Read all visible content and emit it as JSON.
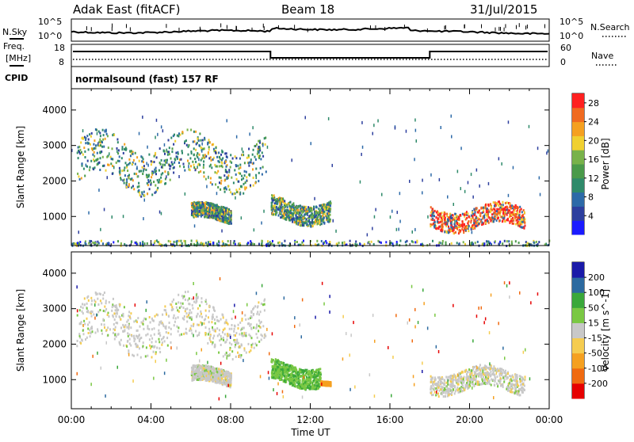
{
  "header": {
    "station": "Adak East (fitACF)",
    "beam": "Beam 18",
    "date": "31/Jul/2015"
  },
  "noise_panel": {
    "left_label": "N.Sky",
    "right_label": "N.Search",
    "tick_top": "10^5",
    "tick_bottom": "10^0"
  },
  "freq_panel": {
    "left_label_1": "Freq.",
    "left_label_2": "[MHz]",
    "left_ticks": [
      "18",
      "8"
    ],
    "right_label": "Nave",
    "right_ticks": [
      "60",
      "0"
    ]
  },
  "cpid": {
    "label": "CPID",
    "text": "normalsound (fast) 157 RF"
  },
  "xaxis": {
    "title": "Time UT",
    "ticks": [
      "00:00",
      "04:00",
      "08:00",
      "12:00",
      "16:00",
      "20:00",
      "00:00"
    ]
  },
  "colors": {
    "power": [
      "#1a1aff",
      "#2d3f9e",
      "#2d6aa8",
      "#2f8a6a",
      "#4a9a4a",
      "#78b24a",
      "#f0d030",
      "#f5a020",
      "#f06a20",
      "#ff2020"
    ],
    "velocity": [
      "#e60000",
      "#f06a10",
      "#f5a020",
      "#f5cc50",
      "#c8c8c8",
      "#7ac843",
      "#3aa83a",
      "#2c6aa0",
      "#1a1aa8"
    ]
  },
  "chart_data": [
    {
      "type": "heatmap",
      "name": "power-panel",
      "ylabel": "Slant Range [km]",
      "yticks": [
        1000,
        2000,
        3000,
        4000
      ],
      "ylim": [
        180,
        4600
      ],
      "xlim_hours": [
        0,
        24
      ],
      "colorbar": {
        "label": "Power [dB]",
        "ticks": [
          4,
          8,
          12,
          16,
          20,
          24,
          28
        ],
        "range": [
          0,
          30
        ]
      },
      "echo_regions": [
        {
          "t_start": "00:15",
          "t_end": "09:45",
          "range_km": [
            1700,
            3400
          ],
          "power_db": "4-20"
        },
        {
          "t_start": "06:00",
          "t_end": "08:00",
          "range_km": [
            800,
            1400
          ],
          "power_db": "8-20"
        },
        {
          "t_start": "10:00",
          "t_end": "13:00",
          "range_km": [
            800,
            1600
          ],
          "power_db": "4-16"
        },
        {
          "t_start": "18:00",
          "t_end": "22:45",
          "range_km": [
            600,
            1400
          ],
          "power_db": "4-30"
        },
        {
          "t_start": "00:00",
          "t_end": "24:00",
          "range_km": [
            180,
            350
          ],
          "power_db": "4-24"
        }
      ]
    },
    {
      "type": "heatmap",
      "name": "velocity-panel",
      "ylabel": "Slant Range [km]",
      "yticks": [
        1000,
        2000,
        3000,
        4000
      ],
      "ylim": [
        180,
        4600
      ],
      "xlim_hours": [
        0,
        24
      ],
      "colorbar": {
        "label": "Velocity [m s^-1]",
        "ticks": [
          -200,
          -100,
          -50,
          -15,
          15,
          50,
          100,
          200
        ]
      },
      "echo_regions": [
        {
          "t_start": "00:15",
          "t_end": "09:45",
          "range_km": [
            1700,
            3400
          ],
          "velocity": "-15 to 15"
        },
        {
          "t_start": "06:00",
          "t_end": "08:00",
          "range_km": [
            800,
            1400
          ],
          "velocity": "-15 to 15"
        },
        {
          "t_start": "10:00",
          "t_end": "12:30",
          "range_km": [
            800,
            1600
          ],
          "velocity": "15 to 100"
        },
        {
          "t_start": "12:30",
          "t_end": "13:00",
          "range_km": [
            850,
            1000
          ],
          "velocity": "-50 to -15"
        },
        {
          "t_start": "18:00",
          "t_end": "22:45",
          "range_km": [
            600,
            1400
          ],
          "velocity": "-15 to 15"
        }
      ]
    }
  ]
}
